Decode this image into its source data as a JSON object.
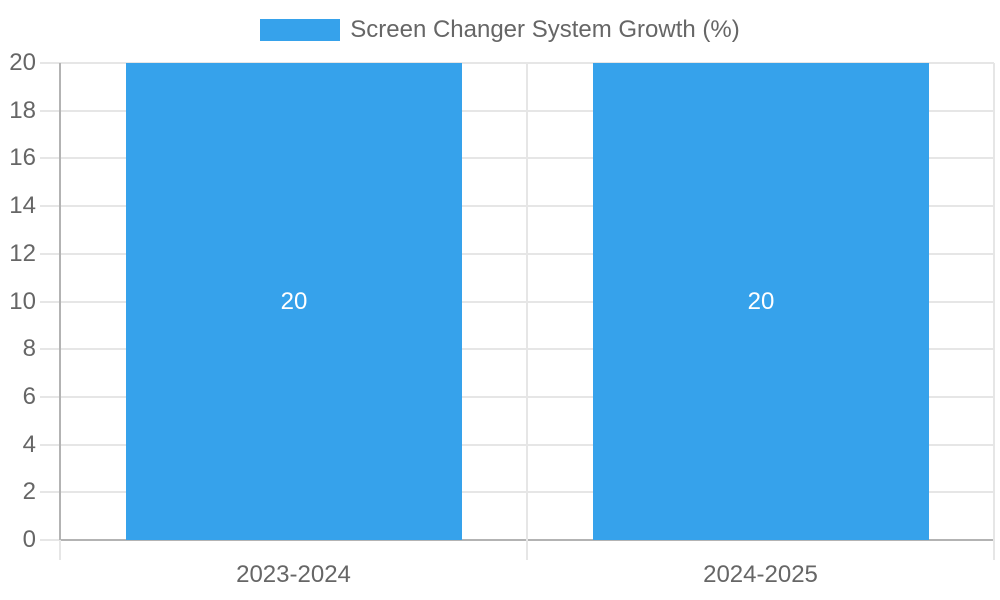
{
  "legend": {
    "label": "Screen Changer System Growth (%)"
  },
  "chart_data": {
    "type": "bar",
    "title": "Screen Changer System Growth (%)",
    "categories": [
      "2023-2024",
      "2024-2025"
    ],
    "series": [
      {
        "name": "Screen Changer System Growth (%)",
        "values": [
          20,
          20
        ]
      }
    ],
    "value_labels": [
      "20",
      "20"
    ],
    "xlabel": "",
    "ylabel": "",
    "ylim": [
      0,
      20
    ],
    "ytick_step": 2,
    "yticks": [
      0,
      2,
      4,
      6,
      8,
      10,
      12,
      14,
      16,
      18,
      20
    ],
    "grid": true,
    "legend_position": "top"
  },
  "colors": {
    "bar": "#36a2eb",
    "grid": "#e6e6e6",
    "axis_line": "#b3b3b3",
    "axis_text": "#666666",
    "value_label": "#ffffff",
    "background": "#ffffff"
  }
}
